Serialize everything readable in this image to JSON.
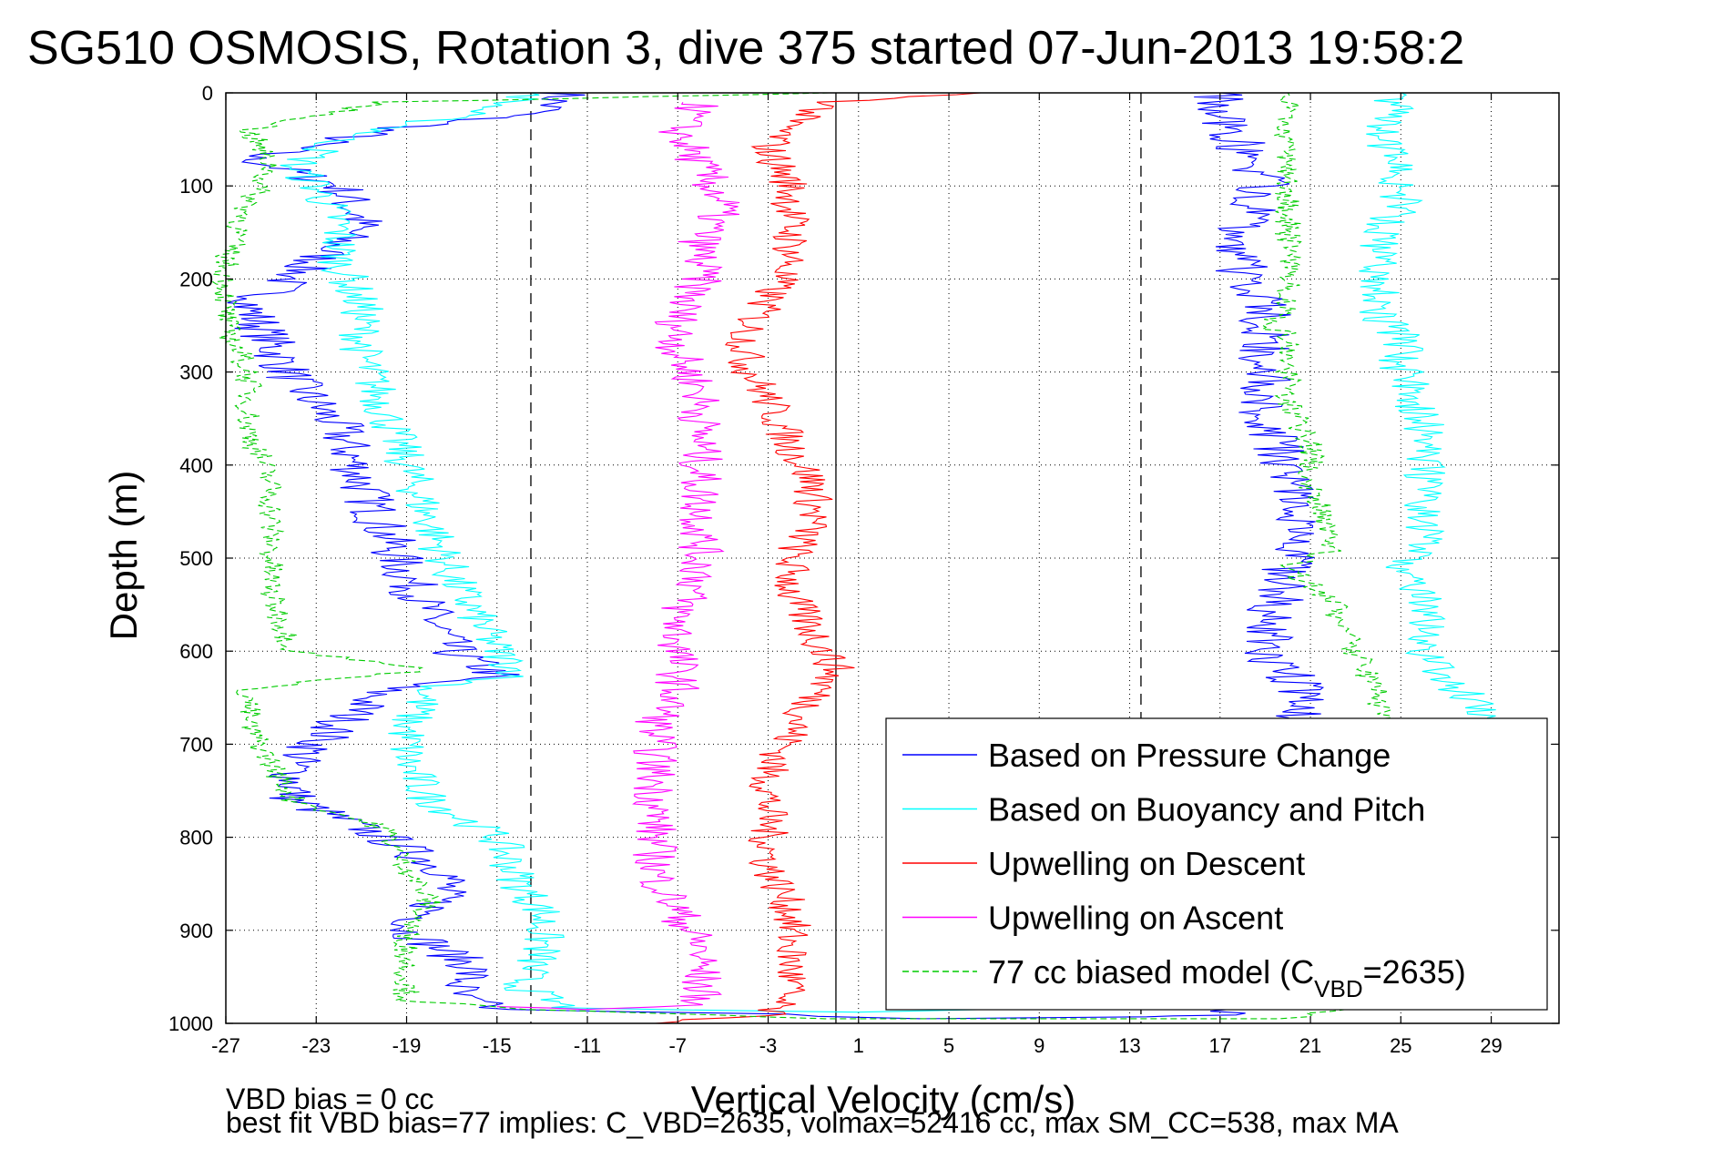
{
  "chart_data": {
    "type": "line",
    "title": "SG510 OSMOSIS, Rotation 3, dive 375 started 07-Jun-2013 19:58:2",
    "xlabel": "Vertical Velocity (cm/s)",
    "ylabel": "Depth (m)",
    "xlim": [
      -27,
      32
    ],
    "ylim": [
      0,
      1000
    ],
    "y_reversed": true,
    "x_ticks": [
      -27,
      -23,
      -19,
      -15,
      -11,
      -7,
      -3,
      1,
      5,
      9,
      13,
      17,
      21,
      25,
      29
    ],
    "x_tick_labels": [
      "-27",
      "-23",
      "-19",
      "-15",
      "-11",
      "-7",
      "-3",
      "1",
      "5",
      "9",
      "13",
      "17",
      "21",
      "25",
      "29"
    ],
    "y_ticks": [
      0,
      100,
      200,
      300,
      400,
      500,
      600,
      700,
      800,
      900,
      1000
    ],
    "y_tick_labels": [
      "0",
      "100",
      "200",
      "300",
      "400",
      "500",
      "600",
      "700",
      "800",
      "900",
      "1000"
    ],
    "grid": true,
    "legend_position": "bottom-right",
    "reference_lines": [
      {
        "x": -13.5,
        "style": "dashed",
        "color": "#000000"
      },
      {
        "x": 0.0,
        "style": "solid",
        "color": "#000000"
      },
      {
        "x": 13.5,
        "style": "dashed",
        "color": "#000000"
      }
    ],
    "series": [
      {
        "name": "Based on Pressure Change",
        "color": "#0000ff",
        "style": "solid",
        "noise": 1.2,
        "points": [
          [
            -12,
            0
          ],
          [
            -13,
            20
          ],
          [
            -20,
            40
          ],
          [
            -26,
            70
          ],
          [
            -22,
            100
          ],
          [
            -21,
            140
          ],
          [
            -23,
            180
          ],
          [
            -26,
            230
          ],
          [
            -25,
            270
          ],
          [
            -24,
            310
          ],
          [
            -22,
            360
          ],
          [
            -21,
            420
          ],
          [
            -20,
            470
          ],
          [
            -19,
            520
          ],
          [
            -18,
            560
          ],
          [
            -17,
            600
          ],
          [
            -15,
            625
          ],
          [
            -20,
            640
          ],
          [
            -22,
            680
          ],
          [
            -24,
            720
          ],
          [
            -24,
            760
          ],
          [
            -20,
            800
          ],
          [
            -17,
            840
          ],
          [
            -18,
            880
          ],
          [
            -19,
            900
          ],
          [
            -16,
            940
          ],
          [
            -17,
            970
          ],
          [
            -15,
            985
          ],
          [
            -3,
            990
          ],
          [
            3,
            995
          ],
          [
            13,
            993
          ],
          [
            17,
            991
          ],
          [
            18,
            985
          ],
          [
            19,
            960
          ],
          [
            19,
            940
          ],
          [
            20,
            900
          ],
          [
            20,
            860
          ],
          [
            20,
            800
          ],
          [
            21,
            750
          ],
          [
            20,
            700
          ],
          [
            21,
            650
          ],
          [
            19,
            600
          ],
          [
            19,
            560
          ],
          [
            20,
            530
          ],
          [
            20,
            510
          ],
          [
            21,
            480
          ],
          [
            20,
            450
          ],
          [
            20,
            400
          ],
          [
            19,
            350
          ],
          [
            19,
            300
          ],
          [
            19,
            260
          ],
          [
            19,
            230
          ],
          [
            18,
            200
          ],
          [
            18,
            150
          ],
          [
            19,
            100
          ],
          [
            18,
            60
          ],
          [
            17,
            20
          ],
          [
            17,
            0
          ]
        ]
      },
      {
        "name": "Based on Buoyancy and Pitch",
        "color": "#00ffff",
        "style": "solid",
        "noise": 1.0,
        "points": [
          [
            -13,
            0
          ],
          [
            -16,
            20
          ],
          [
            -22,
            50
          ],
          [
            -24,
            80
          ],
          [
            -23,
            100
          ],
          [
            -22,
            140
          ],
          [
            -22,
            180
          ],
          [
            -21,
            230
          ],
          [
            -21,
            280
          ],
          [
            -20,
            340
          ],
          [
            -19,
            400
          ],
          [
            -18,
            460
          ],
          [
            -17,
            520
          ],
          [
            -16,
            560
          ],
          [
            -15,
            600
          ],
          [
            -14,
            625
          ],
          [
            -18,
            640
          ],
          [
            -19,
            680
          ],
          [
            -19,
            720
          ],
          [
            -18,
            760
          ],
          [
            -15,
            800
          ],
          [
            -14,
            850
          ],
          [
            -13,
            880
          ],
          [
            -13,
            920
          ],
          [
            -14,
            960
          ],
          [
            -12,
            983
          ],
          [
            0,
            988
          ],
          [
            26,
            975
          ],
          [
            26,
            900
          ],
          [
            28,
            850
          ],
          [
            29,
            800
          ],
          [
            29,
            700
          ],
          [
            28,
            650
          ],
          [
            26,
            600
          ],
          [
            26,
            550
          ],
          [
            25,
            510
          ],
          [
            26,
            490
          ],
          [
            26,
            450
          ],
          [
            26,
            400
          ],
          [
            26,
            350
          ],
          [
            25,
            300
          ],
          [
            25,
            260
          ],
          [
            24,
            240
          ],
          [
            24,
            200
          ],
          [
            24,
            160
          ],
          [
            25,
            120
          ],
          [
            25,
            80
          ],
          [
            24,
            40
          ],
          [
            25,
            0
          ]
        ]
      },
      {
        "name": "Upwelling on Descent",
        "color": "#ff0000",
        "style": "solid",
        "noise": 0.9,
        "points": [
          [
            6,
            0
          ],
          [
            0,
            10
          ],
          [
            -2,
            30
          ],
          [
            -3,
            60
          ],
          [
            -2,
            100
          ],
          [
            -2,
            140
          ],
          [
            -2,
            180
          ],
          [
            -3,
            220
          ],
          [
            -4,
            260
          ],
          [
            -4,
            290
          ],
          [
            -3,
            330
          ],
          [
            -2,
            380
          ],
          [
            -1,
            420
          ],
          [
            -1,
            460
          ],
          [
            -2,
            500
          ],
          [
            -2,
            540
          ],
          [
            -1,
            580
          ],
          [
            0,
            620
          ],
          [
            -1,
            650
          ],
          [
            -2,
            690
          ],
          [
            -3,
            730
          ],
          [
            -3,
            780
          ],
          [
            -3,
            830
          ],
          [
            -2,
            880
          ],
          [
            -2,
            920
          ],
          [
            -2,
            960
          ],
          [
            -3,
            990
          ],
          [
            -8,
            1000
          ]
        ]
      },
      {
        "name": "Upwelling on Ascent",
        "color": "#ff00ff",
        "style": "solid",
        "noise": 1.0,
        "points": [
          [
            -6,
            10
          ],
          [
            -7,
            40
          ],
          [
            -6,
            80
          ],
          [
            -5,
            120
          ],
          [
            -6,
            160
          ],
          [
            -6,
            200
          ],
          [
            -7,
            240
          ],
          [
            -7,
            280
          ],
          [
            -6,
            320
          ],
          [
            -6,
            360
          ],
          [
            -6,
            400
          ],
          [
            -6,
            440
          ],
          [
            -6,
            480
          ],
          [
            -6,
            520
          ],
          [
            -7,
            560
          ],
          [
            -7,
            600
          ],
          [
            -7,
            640
          ],
          [
            -8,
            680
          ],
          [
            -8,
            720
          ],
          [
            -8,
            760
          ],
          [
            -8,
            800
          ],
          [
            -8,
            840
          ],
          [
            -7,
            880
          ],
          [
            -6,
            920
          ],
          [
            -6,
            960
          ],
          [
            -6,
            980
          ],
          [
            -11,
            985
          ],
          [
            -15,
            982
          ]
        ]
      },
      {
        "name": "77 cc biased model (C",
        "name_sub": "VBD",
        "name_tail": "=2635)",
        "color": "#00cc00",
        "style": "dashed",
        "noise": 0.6,
        "points": [
          [
            0,
            0
          ],
          [
            -20,
            10
          ],
          [
            -26,
            40
          ],
          [
            -25,
            80
          ],
          [
            -26,
            120
          ],
          [
            -27,
            180
          ],
          [
            -27,
            250
          ],
          [
            -26,
            300
          ],
          [
            -26,
            360
          ],
          [
            -25,
            420
          ],
          [
            -25,
            480
          ],
          [
            -25,
            540
          ],
          [
            -24,
            600
          ],
          [
            -18,
            620
          ],
          [
            -26,
            640
          ],
          [
            -26,
            680
          ],
          [
            -25,
            720
          ],
          [
            -24,
            760
          ],
          [
            -20,
            790
          ],
          [
            -19,
            830
          ],
          [
            -18,
            870
          ],
          [
            -19,
            900
          ],
          [
            -19,
            940
          ],
          [
            -19,
            975
          ],
          [
            -14,
            985
          ],
          [
            0,
            995
          ],
          [
            20,
            995
          ],
          [
            22,
            985
          ],
          [
            26,
            975
          ],
          [
            25,
            880
          ],
          [
            25,
            800
          ],
          [
            24,
            700
          ],
          [
            24,
            650
          ],
          [
            23,
            600
          ],
          [
            22,
            550
          ],
          [
            20,
            510
          ],
          [
            22,
            490
          ],
          [
            21,
            420
          ],
          [
            21,
            380
          ],
          [
            20,
            330
          ],
          [
            20,
            300
          ],
          [
            20,
            260
          ],
          [
            19,
            250
          ],
          [
            20,
            230
          ],
          [
            20,
            160
          ],
          [
            20,
            80
          ],
          [
            20,
            20
          ],
          [
            20,
            0
          ]
        ]
      }
    ],
    "footnotes": {
      "bias": "VBD bias = 0 cc",
      "fit": "best fit VBD bias=77 implies: C_VBD=2635, volmax=52416 cc, max SM_CC=538, max MA"
    }
  }
}
